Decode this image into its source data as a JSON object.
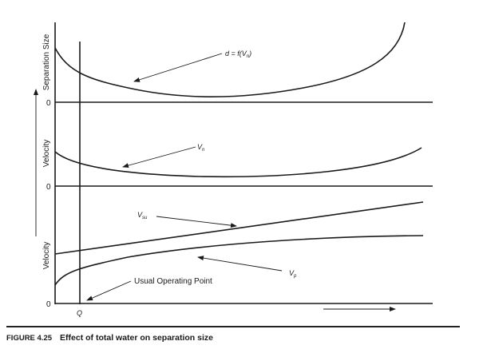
{
  "figure": {
    "number": "FIGURE 4.25",
    "caption": "Effect of total water on separation size"
  },
  "axes": {
    "top_ylabel": "Separation Size",
    "middle_ylabel": "Velocity",
    "bottom_ylabel": "Velocity",
    "zero_labels": [
      "0",
      "0",
      "0"
    ],
    "x_marker": "Q"
  },
  "annotations": {
    "d_curve": "d = f(V",
    "d_curve_sub": "n",
    "d_curve_end": ")",
    "vn": "V",
    "vn_sub": "n",
    "vsu": "V",
    "vsu_sub": "su",
    "vp": "V",
    "vp_sub": "p",
    "operating_point": "Usual Operating Point"
  }
}
